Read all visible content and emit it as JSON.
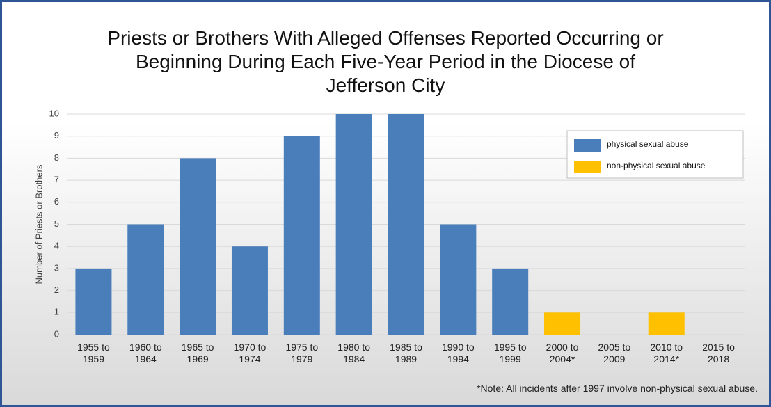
{
  "chart_data": {
    "type": "bar",
    "title": "Priests or Brothers With Alleged Offenses Reported Occurring or Beginning During Each Five-Year Period in the Diocese of Jefferson City",
    "y_label": "Number of Priests or Brothers",
    "categories": [
      "1955 to 1959",
      "1960 to 1964",
      "1965 to 1969",
      "1970 to 1974",
      "1975 to 1979",
      "1980 to 1984",
      "1985 to 1989",
      "1990 to 1994",
      "1995 to 1999",
      "2000 to 2004*",
      "2005 to 2009",
      "2010 to 2014*",
      "2015 to 2018"
    ],
    "series": [
      {
        "name": "physical sexual abuse",
        "color": "#4a7ebb",
        "values": [
          3,
          5,
          8,
          4,
          9,
          10,
          10,
          5,
          3,
          null,
          null,
          null,
          null
        ]
      },
      {
        "name": "non-physical sexual abuse",
        "color": "#ffc000",
        "values": [
          null,
          null,
          null,
          null,
          null,
          null,
          null,
          null,
          null,
          1,
          0,
          1,
          0
        ]
      }
    ],
    "ylim": [
      0,
      10
    ],
    "yticks": [
      0,
      1,
      2,
      3,
      4,
      5,
      6,
      7,
      8,
      9,
      10
    ],
    "grid": true,
    "legend": "upper right",
    "note": "*Note: All incidents after 1997 involve non-physical sexual abuse."
  }
}
